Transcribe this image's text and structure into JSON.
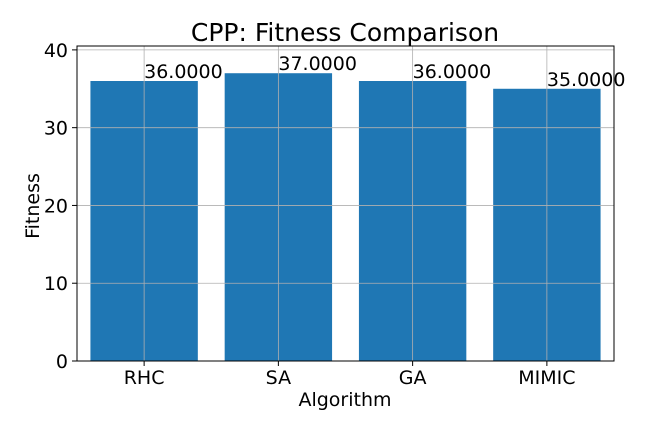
{
  "chart_data": {
    "type": "bar",
    "title": "CPP: Fitness Comparison",
    "xlabel": "Algorithm",
    "ylabel": "Fitness",
    "categories": [
      "RHC",
      "SA",
      "GA",
      "MIMIC"
    ],
    "values": [
      36,
      37,
      36,
      35
    ],
    "data_labels": [
      "36.0000",
      "37.0000",
      "36.0000",
      "35.0000"
    ],
    "ylim": [
      0,
      40.5
    ],
    "yticks": [
      0,
      10,
      20,
      30,
      40
    ],
    "ytick_labels": [
      "0",
      "10",
      "20",
      "30",
      "40"
    ],
    "grid": true,
    "bar_color": "#1f77b4",
    "grid_color": "#b0b0b0"
  }
}
